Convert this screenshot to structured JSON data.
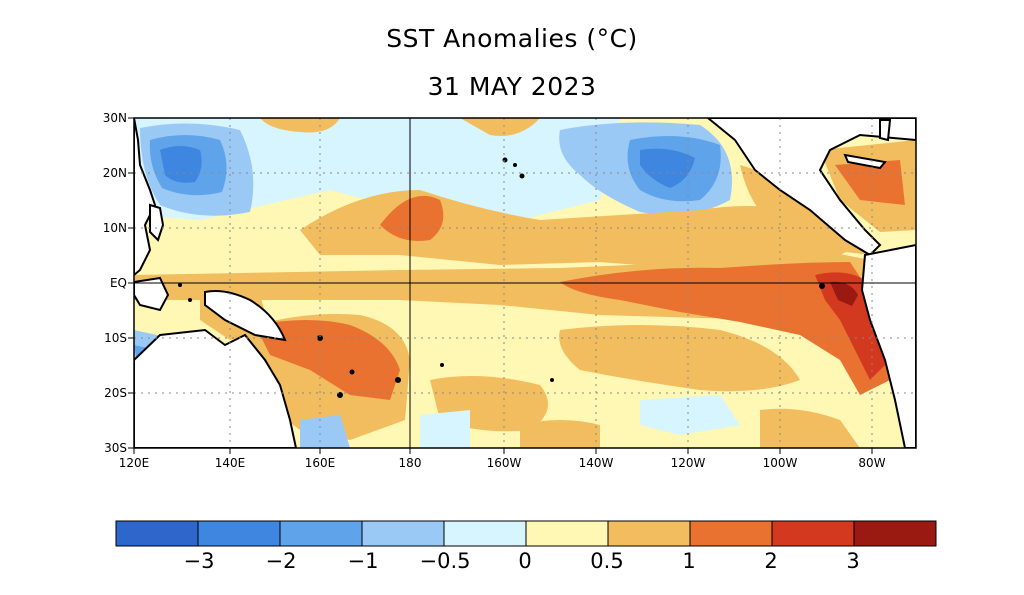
{
  "title": "SST Anomalies (°C)",
  "date": "31 MAY 2023",
  "lat_labels": [
    "30N",
    "20N",
    "10N",
    "EQ",
    "10S",
    "20S",
    "30S"
  ],
  "lon_labels": [
    "120E",
    "140E",
    "160E",
    "180",
    "160W",
    "140W",
    "120W",
    "100W",
    "80W"
  ],
  "colorbar": {
    "colors": [
      "#2e66cc",
      "#3f86e0",
      "#5fa4ea",
      "#9bc9f5",
      "#d6f5ff",
      "#fff7b4",
      "#f2bd5e",
      "#ea7231",
      "#d3391f",
      "#9a1a12"
    ],
    "tick_labels": [
      "−3",
      "−2",
      "−1",
      "−0.5",
      "0",
      "0.5",
      "1",
      "2",
      "3"
    ]
  },
  "colors": {
    "land": "#ffffff",
    "warm_dominant": "#f2bd5e",
    "el_nino_tongue": "#ea7231",
    "peru_coast_max": "#d3391f",
    "cool_nw_pacific": "#5fa4ea"
  }
}
